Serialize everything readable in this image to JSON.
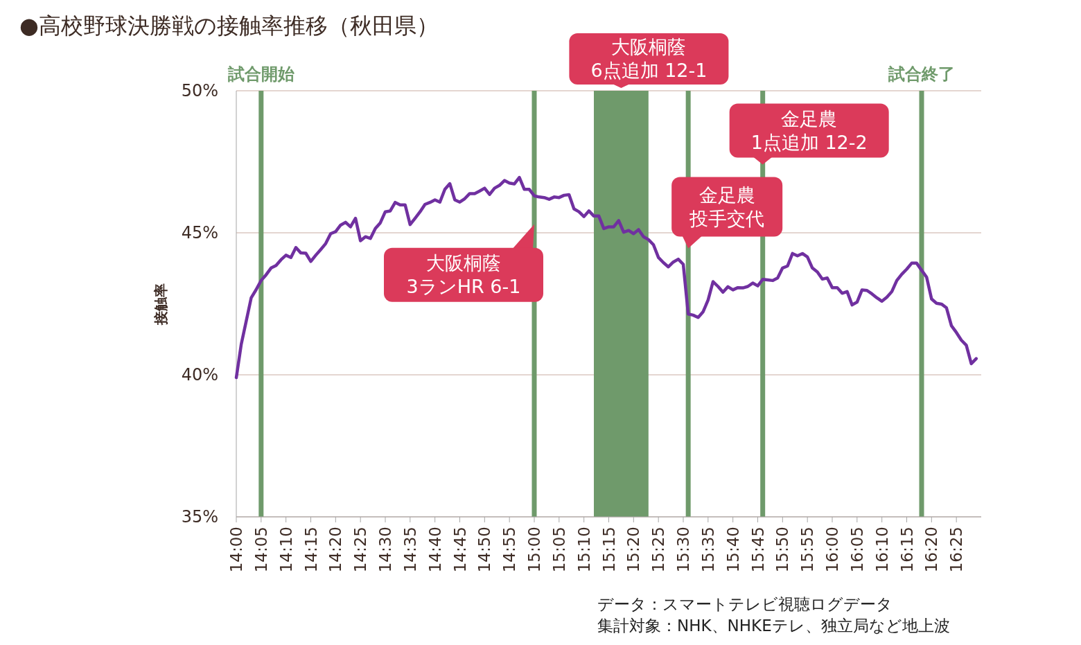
{
  "chart_data": {
    "type": "line",
    "title": "●高校野球決勝戦の接触率推移（秋田県）",
    "ylabel": "接触率",
    "x": [
      14.0,
      14.0167,
      14.0333,
      14.05,
      14.0667,
      14.0833,
      14.1,
      14.1167,
      14.1333,
      14.15,
      14.1667,
      14.1833,
      14.2,
      14.2167,
      14.2333,
      14.25,
      14.2667,
      14.2833,
      14.3,
      14.3167,
      14.3333,
      14.35,
      14.3667,
      14.3833,
      14.4,
      14.4167,
      14.4333,
      14.45,
      14.4667,
      14.4833,
      14.5,
      14.5167,
      14.5333,
      14.55,
      14.5667,
      14.5833,
      14.6,
      14.6167,
      14.6333,
      14.65,
      14.6667,
      14.6833,
      14.7,
      14.7167,
      14.7333,
      14.75,
      14.7667,
      14.7833,
      14.8,
      14.8167,
      14.8333,
      14.85,
      14.8667,
      14.8833,
      14.9,
      14.9167,
      14.9333,
      14.95,
      14.9667,
      14.9833,
      15.0,
      15.0167,
      15.0333,
      15.05,
      15.0667,
      15.0833,
      15.1,
      15.1167,
      15.1333,
      15.15,
      15.1667,
      15.1833,
      15.2,
      15.2167,
      15.2333,
      15.25,
      15.2667,
      15.2833,
      15.3,
      15.3167,
      15.3333,
      15.35,
      15.3667,
      15.3833,
      15.4,
      15.4167,
      15.4333,
      15.45,
      15.4667,
      15.4833,
      15.5,
      15.5167,
      15.5333,
      15.55,
      15.5667,
      15.5833,
      15.6,
      15.6167,
      15.6333,
      15.65,
      15.6667,
      15.6833,
      15.7,
      15.7167,
      15.7333,
      15.75,
      15.7667,
      15.7833,
      15.8,
      15.8167,
      15.8333,
      15.85,
      15.8667,
      15.8833,
      15.9,
      15.9167,
      15.9333,
      15.95,
      15.9667,
      15.9833,
      16.0,
      16.0167,
      16.0333,
      16.05,
      16.0667,
      16.0833,
      16.1,
      16.1167,
      16.1333,
      16.15,
      16.1667,
      16.1833,
      16.2,
      16.2167,
      16.2333,
      16.25,
      16.2667,
      16.2833,
      16.3,
      16.3167,
      16.3333,
      16.35,
      16.3667,
      16.3833,
      16.4,
      16.4167,
      16.4333,
      16.45,
      16.4667,
      16.4833
    ],
    "series": [
      {
        "color": "#7030a0",
        "values": [
          39.9,
          41.08,
          41.89,
          42.71,
          43.0,
          43.32,
          43.52,
          43.76,
          43.85,
          44.05,
          44.21,
          44.13,
          44.48,
          44.29,
          44.28,
          43.99,
          44.21,
          44.41,
          44.62,
          44.97,
          45.04,
          45.27,
          45.37,
          45.21,
          45.51,
          44.72,
          44.86,
          44.8,
          45.15,
          45.35,
          45.74,
          45.77,
          46.07,
          45.98,
          45.98,
          45.29,
          45.51,
          45.74,
          46.0,
          46.07,
          46.16,
          46.08,
          46.53,
          46.73,
          46.16,
          46.08,
          46.2,
          46.38,
          46.38,
          46.47,
          46.57,
          46.35,
          46.57,
          46.67,
          46.84,
          46.75,
          46.72,
          46.95,
          46.53,
          46.53,
          46.3,
          46.26,
          46.24,
          46.18,
          46.26,
          46.24,
          46.32,
          46.34,
          45.84,
          45.74,
          45.57,
          45.77,
          45.59,
          45.59,
          45.15,
          45.21,
          45.21,
          45.43,
          45.02,
          45.08,
          44.97,
          45.11,
          44.86,
          44.76,
          44.58,
          44.13,
          43.95,
          43.8,
          43.97,
          44.07,
          43.89,
          42.14,
          42.1,
          42.02,
          42.22,
          42.63,
          43.28,
          43.11,
          42.91,
          43.1,
          42.99,
          43.07,
          43.06,
          43.11,
          43.23,
          43.13,
          43.36,
          43.34,
          43.32,
          43.41,
          43.76,
          43.83,
          44.27,
          44.19,
          44.27,
          44.15,
          43.76,
          43.62,
          43.37,
          43.41,
          43.07,
          43.07,
          42.87,
          42.93,
          42.46,
          42.56,
          42.99,
          42.97,
          42.85,
          42.71,
          42.59,
          42.73,
          42.93,
          43.32,
          43.54,
          43.72,
          43.93,
          43.93,
          43.68,
          43.44,
          42.67,
          42.52,
          42.49,
          42.36,
          41.73,
          41.49,
          41.22,
          41.04,
          40.39,
          40.57
        ]
      }
    ],
    "xlim": [
      14,
      16.5
    ],
    "xticks": [
      {
        "value": 14.0,
        "label": "14:00"
      },
      {
        "value": 14.0833,
        "label": "14:05"
      },
      {
        "value": 14.1667,
        "label": "14:10"
      },
      {
        "value": 14.25,
        "label": "14:15"
      },
      {
        "value": 14.3333,
        "label": "14:20"
      },
      {
        "value": 14.4167,
        "label": "14:25"
      },
      {
        "value": 14.5,
        "label": "14:30"
      },
      {
        "value": 14.5833,
        "label": "14:35"
      },
      {
        "value": 14.6667,
        "label": "14:40"
      },
      {
        "value": 14.75,
        "label": "14:45"
      },
      {
        "value": 14.8333,
        "label": "14:50"
      },
      {
        "value": 14.9167,
        "label": "14:55"
      },
      {
        "value": 15.0,
        "label": "15:00"
      },
      {
        "value": 15.0833,
        "label": "15:05"
      },
      {
        "value": 15.1667,
        "label": "15:10"
      },
      {
        "value": 15.25,
        "label": "15:15"
      },
      {
        "value": 15.3333,
        "label": "15:20"
      },
      {
        "value": 15.4167,
        "label": "15:25"
      },
      {
        "value": 15.5,
        "label": "15:30"
      },
      {
        "value": 15.5833,
        "label": "15:35"
      },
      {
        "value": 15.6667,
        "label": "15:40"
      },
      {
        "value": 15.75,
        "label": "15:45"
      },
      {
        "value": 15.8333,
        "label": "15:50"
      },
      {
        "value": 15.9167,
        "label": "15:55"
      },
      {
        "value": 16.0,
        "label": "16:00"
      },
      {
        "value": 16.0833,
        "label": "16:05"
      },
      {
        "value": 16.1667,
        "label": "16:10"
      },
      {
        "value": 16.25,
        "label": "16:15"
      },
      {
        "value": 16.3333,
        "label": "16:20"
      },
      {
        "value": 16.4167,
        "label": "16:25"
      }
    ],
    "ylim": [
      35,
      50
    ],
    "yticks": [
      {
        "value": 35,
        "label": "35%"
      },
      {
        "value": 40,
        "label": "40%"
      },
      {
        "value": 45,
        "label": "45%"
      },
      {
        "value": 50,
        "label": "50%"
      }
    ],
    "grid": "y",
    "marker": "none",
    "line_style": "solid",
    "ref_lines": [
      {
        "axis": "x",
        "value": 14.0833,
        "label": "試合開始",
        "color": "#6f9a6b"
      },
      {
        "axis": "x",
        "value": 15.0,
        "color": "#6f9a6b"
      },
      {
        "axis": "x",
        "value": 15.5167,
        "color": "#6f9a6b"
      },
      {
        "axis": "x",
        "value": 15.7667,
        "color": "#6f9a6b"
      },
      {
        "axis": "x",
        "value": 16.3,
        "label": "試合終了",
        "color": "#6f9a6b"
      }
    ],
    "bands": [
      {
        "axis": "x",
        "from": 15.2,
        "to": 15.3833,
        "color": "#6f9a6b"
      }
    ],
    "annotations": [
      {
        "text": "大阪桐蔭",
        "x": 15.0,
        "y": 45.3
      },
      {
        "text": "3ランHR 6-1",
        "x": 15.0,
        "y": 45.3
      },
      "大阪桐蔭",
      "6点追加 12-1",
      {
        "text": "金足農",
        "x": 15.5167,
        "y": 44.45
      },
      {
        "text": "投手交代",
        "x": 15.5167,
        "y": 44.45
      },
      {
        "text": "金足農",
        "x": 15.7667,
        "y": 47.4
      },
      {
        "text": "1点追加 12-2",
        "x": 15.7667,
        "y": 47.4
      },
      "データ：スマートテレビ視聴ログデータ",
      "集計対象：NHK、NHKEテレ、独立局など地上波"
    ]
  }
}
